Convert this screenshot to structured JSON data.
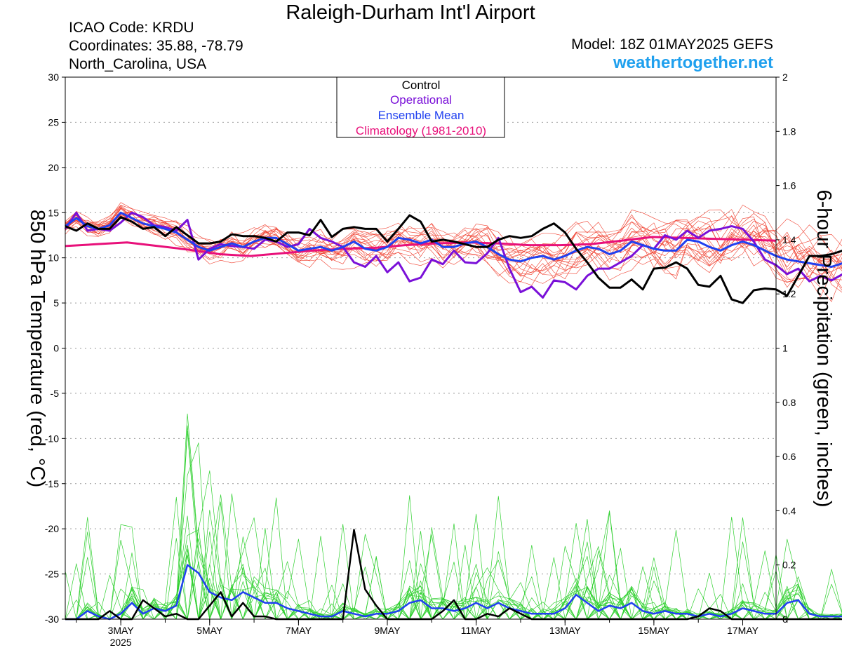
{
  "header": {
    "title": "Raleigh-Durham Int'l Airport",
    "icao": "ICAO Code: KRDU",
    "coordinates": "Coordinates: 35.88, -78.79",
    "region": "North_Carolina, USA",
    "model": "Model: 18Z 01MAY2025 GEFS",
    "brand": "weathertogether.net"
  },
  "colors": {
    "control": "#000000",
    "operational": "#7a10d8",
    "ensemble_mean": "#2040f0",
    "climatology": "#e8107a",
    "members_temp": "#f04030",
    "members_precip": "#30d030",
    "brand": "#1fa0ee"
  },
  "chart_data": {
    "type": "line",
    "title": "Raleigh-Durham Int'l Airport",
    "ylabel": "850 hPa Temperature (red, °C)",
    "y2label": "6-hour Precipitation (green, inches)",
    "ylim": [
      -30,
      30
    ],
    "y2lim": [
      0,
      2
    ],
    "yticks": [
      "30",
      "25",
      "20",
      "15",
      "10",
      "5",
      "0",
      "-5",
      "-10",
      "-15",
      "-20",
      "-25",
      "-30"
    ],
    "y2ticks": [
      "2",
      "1.8",
      "1.6",
      "1.4",
      "1.2",
      "1",
      "0.8",
      "0.6",
      "0.4",
      "0.2",
      "0"
    ],
    "x_start": "2025-05-01T18Z",
    "x_step_hours": 6,
    "xtick_labels": [
      "3MAY",
      "5MAY",
      "7MAY",
      "9MAY",
      "11MAY",
      "13MAY",
      "15MAY",
      "17MAY"
    ],
    "xtick_day_offsets": [
      1.25,
      3.25,
      5.25,
      7.25,
      9.25,
      11.25,
      13.25,
      15.25
    ],
    "year_label": "2025",
    "grid": true,
    "legend_position": "top-center",
    "legend": [
      "Control",
      "Operational",
      "Ensemble Mean",
      "Climatology (1981-2010)"
    ],
    "ensemble_members": 20,
    "series": [
      {
        "name": "Control",
        "axis": "temperature",
        "values": [
          13.5,
          13,
          13.8,
          13.2,
          13.2,
          14.5,
          14,
          13.2,
          13.4,
          12.4,
          13.4,
          12.5,
          11.6,
          11.6,
          11.8,
          12.6,
          12.4,
          12.4,
          12.2,
          11.8,
          12.8,
          12.8,
          12.5,
          14.2,
          12.3,
          13.2,
          13.4,
          13.2,
          13.2,
          11.8,
          13.2,
          14.7,
          14,
          11.8,
          12,
          11.8,
          11.5,
          11.2,
          11.2,
          12,
          12.4,
          12.2,
          12.4,
          13.2,
          13.8,
          12.8,
          11,
          9.5,
          7.8,
          6.7,
          6.7,
          7.6,
          6.5,
          8.8,
          8.9,
          9.5,
          8.8,
          7,
          6.8,
          8,
          5.4,
          5,
          6.4,
          6.6,
          6.5,
          5.8,
          8,
          10.2,
          10.2,
          10.4,
          10.8
        ]
      },
      {
        "name": "Operational",
        "axis": "temperature",
        "values": [
          13.2,
          15,
          13,
          13.2,
          13,
          13.9,
          15,
          14.5,
          13.6,
          13.4,
          13,
          14.2,
          9.8,
          11,
          11.5,
          11.3,
          11.2,
          11,
          12,
          11.8,
          11.2,
          11.5,
          13.2,
          12.2,
          11.8,
          11.2,
          9.5,
          9,
          10.2,
          8.4,
          9.5,
          7.4,
          7.8,
          9.8,
          9.3,
          10.8,
          9.5,
          9.4,
          10.5,
          12.2,
          8.8,
          6.2,
          6.8,
          5.6,
          7.5,
          7.3,
          6.5,
          8,
          8.8,
          8.8,
          9.5,
          10.2,
          11.4,
          11,
          12.5,
          12,
          13,
          12.2,
          13,
          13.2,
          13.5,
          13.2,
          11.8,
          9.8,
          9.2,
          8.2,
          8.8,
          7.4,
          8,
          7.5,
          8.2
        ]
      },
      {
        "name": "Ensemble Mean",
        "axis": "temperature",
        "values": [
          13.5,
          14.4,
          13.5,
          13.2,
          13.6,
          15,
          14.4,
          13.8,
          13.5,
          13.2,
          12.8,
          12,
          11.2,
          10.8,
          11.2,
          11.6,
          11.2,
          11.8,
          12.2,
          12.2,
          11.5,
          10.8,
          11,
          11.2,
          10.8,
          11.2,
          11.8,
          11,
          10.8,
          11.2,
          12.2,
          12,
          11.6,
          12,
          11.2,
          11.2,
          11.6,
          11.8,
          11.2,
          10.4,
          9.8,
          9.6,
          10,
          10.2,
          9.8,
          10.2,
          10.8,
          11.2,
          11,
          10.4,
          10.8,
          11.8,
          11.4,
          11,
          10.8,
          10.8,
          12,
          11.8,
          11.2,
          10.8,
          11.4,
          11.8,
          11.4,
          10.8,
          10.2,
          9.8,
          9.6,
          9.4,
          9.2,
          9,
          9.4
        ]
      },
      {
        "name": "Climatology (1981-2010)",
        "axis": "temperature",
        "values": [
          11.3,
          11.5,
          11.7,
          11.3,
          10.9,
          10.4,
          10.2,
          10.5,
          10.8,
          11,
          11.1,
          11.4,
          11.6,
          11.7,
          11.6,
          11.4,
          11.4,
          11.5,
          11.9,
          12.3,
          12.2,
          12.1,
          12,
          11.9
        ]
      },
      {
        "name": "Control",
        "axis": "precipitation",
        "values": [
          0,
          0,
          0,
          0,
          0.03,
          0,
          0,
          0.07,
          0.04,
          0.01,
          0.02,
          0,
          0,
          0.05,
          0.1,
          0.01,
          0.06,
          0.01,
          0.01,
          0,
          0,
          0,
          0,
          0,
          0,
          0,
          0.33,
          0.11,
          0.05,
          0,
          0,
          0,
          0,
          0,
          0.03,
          0.07,
          0,
          0,
          0.02,
          0.01,
          0.04,
          0.02,
          0,
          0,
          0,
          0,
          0,
          0,
          0,
          0,
          0,
          0,
          0,
          0,
          0,
          0,
          0,
          0.01,
          0.04,
          0.03,
          0,
          0,
          0,
          0,
          0,
          0,
          0,
          0,
          0,
          0,
          0
        ]
      },
      {
        "name": "Ensemble Mean",
        "axis": "precipitation",
        "values": [
          0,
          0,
          0.03,
          0.01,
          0,
          0.02,
          0.06,
          0.02,
          0.04,
          0.03,
          0.05,
          0.2,
          0.17,
          0.1,
          0.08,
          0.07,
          0.1,
          0.08,
          0.06,
          0.06,
          0.04,
          0.03,
          0.02,
          0.01,
          0.01,
          0.03,
          0.02,
          0.01,
          0.02,
          0.02,
          0.03,
          0.06,
          0.07,
          0.04,
          0.04,
          0.03,
          0.04,
          0.06,
          0.04,
          0.06,
          0.04,
          0.03,
          0.02,
          0.02,
          0.02,
          0.04,
          0.09,
          0.06,
          0.03,
          0.05,
          0.04,
          0.06,
          0.03,
          0.02,
          0.03,
          0.02,
          0.02,
          0.01,
          0.02,
          0.01,
          0.02,
          0.04,
          0.03,
          0.02,
          0.02,
          0.06,
          0.07,
          0.02,
          0.01,
          0.01,
          0.01
        ]
      }
    ]
  }
}
